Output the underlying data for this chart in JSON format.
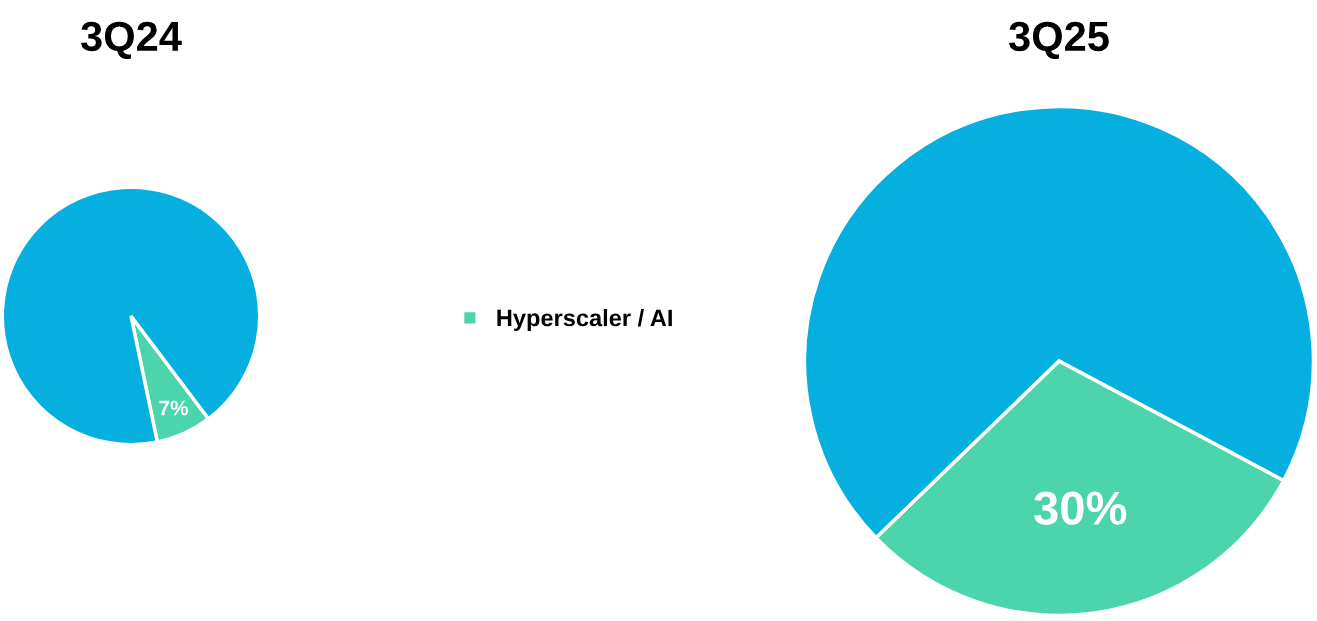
{
  "chart_data": [
    {
      "type": "pie",
      "title": "3Q24",
      "categories": [
        "Hyperscaler / AI",
        null
      ],
      "values": [
        7,
        93
      ],
      "colors": [
        "#4cd5ad",
        "#05b0e0"
      ],
      "value_labels": [
        "7%",
        null
      ],
      "legend": "right"
    },
    {
      "type": "pie",
      "title": "3Q25",
      "categories": [
        null,
        null
      ],
      "values": [
        30,
        70
      ],
      "colors": [
        "#4cd5ad",
        "#05b0e0"
      ],
      "value_labels": [
        "30%",
        null
      ]
    }
  ]
}
